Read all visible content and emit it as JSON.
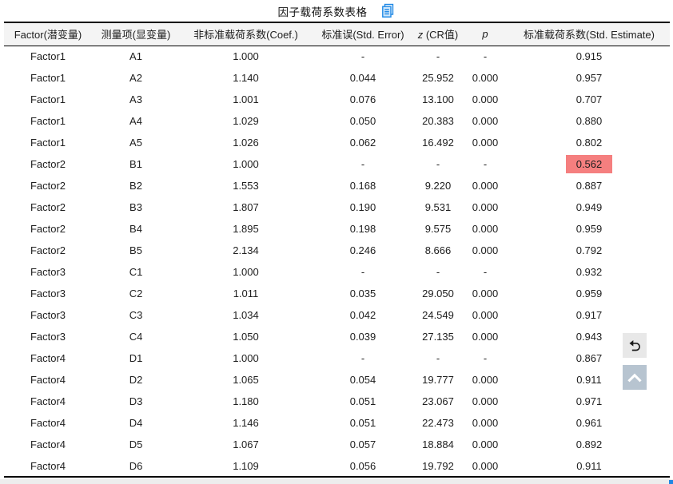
{
  "title": {
    "text": "因子载荷系数表格"
  },
  "icons": {
    "copy_table": "copy-table-icon",
    "undo": "undo-icon",
    "scroll_top": "chevron-up-icon"
  },
  "colors": {
    "highlight_cell": "#f57f7f",
    "icon_blue": "#1e88e5",
    "icon_blue_fill": "#cfe7fb",
    "undo_button_bg": "#e8e8e8",
    "scroll_top_button_bg": "#b7c4d0",
    "header_bg": "#f4f4f4",
    "corner_fragment_blue": "#1e88e5"
  },
  "table": {
    "columns": [
      {
        "key": "factor",
        "label": "Factor(潜变量)"
      },
      {
        "key": "item",
        "label": "测量项(显变量)"
      },
      {
        "key": "coef",
        "label": "非标准载荷系数(Coef.)"
      },
      {
        "key": "stderr",
        "label": "标准误(Std. Error)"
      },
      {
        "key": "z",
        "label_italic": "z",
        "label": " (CR值)"
      },
      {
        "key": "p",
        "label_italic": "p",
        "label": ""
      },
      {
        "key": "est",
        "label": "标准载荷系数(Std. Estimate)"
      }
    ],
    "rows": [
      {
        "factor": "Factor1",
        "item": "A1",
        "coef": "1.000",
        "stderr": "-",
        "z": "-",
        "p": "-",
        "est": "0.915"
      },
      {
        "factor": "Factor1",
        "item": "A2",
        "coef": "1.140",
        "stderr": "0.044",
        "z": "25.952",
        "p": "0.000",
        "est": "0.957"
      },
      {
        "factor": "Factor1",
        "item": "A3",
        "coef": "1.001",
        "stderr": "0.076",
        "z": "13.100",
        "p": "0.000",
        "est": "0.707"
      },
      {
        "factor": "Factor1",
        "item": "A4",
        "coef": "1.029",
        "stderr": "0.050",
        "z": "20.383",
        "p": "0.000",
        "est": "0.880"
      },
      {
        "factor": "Factor1",
        "item": "A5",
        "coef": "1.026",
        "stderr": "0.062",
        "z": "16.492",
        "p": "0.000",
        "est": "0.802"
      },
      {
        "factor": "Factor2",
        "item": "B1",
        "coef": "1.000",
        "stderr": "-",
        "z": "-",
        "p": "-",
        "est": "0.562",
        "est_highlight": true
      },
      {
        "factor": "Factor2",
        "item": "B2",
        "coef": "1.553",
        "stderr": "0.168",
        "z": "9.220",
        "p": "0.000",
        "est": "0.887"
      },
      {
        "factor": "Factor2",
        "item": "B3",
        "coef": "1.807",
        "stderr": "0.190",
        "z": "9.531",
        "p": "0.000",
        "est": "0.949"
      },
      {
        "factor": "Factor2",
        "item": "B4",
        "coef": "1.895",
        "stderr": "0.198",
        "z": "9.575",
        "p": "0.000",
        "est": "0.959"
      },
      {
        "factor": "Factor2",
        "item": "B5",
        "coef": "2.134",
        "stderr": "0.246",
        "z": "8.666",
        "p": "0.000",
        "est": "0.792"
      },
      {
        "factor": "Factor3",
        "item": "C1",
        "coef": "1.000",
        "stderr": "-",
        "z": "-",
        "p": "-",
        "est": "0.932"
      },
      {
        "factor": "Factor3",
        "item": "C2",
        "coef": "1.011",
        "stderr": "0.035",
        "z": "29.050",
        "p": "0.000",
        "est": "0.959"
      },
      {
        "factor": "Factor3",
        "item": "C3",
        "coef": "1.034",
        "stderr": "0.042",
        "z": "24.549",
        "p": "0.000",
        "est": "0.917"
      },
      {
        "factor": "Factor3",
        "item": "C4",
        "coef": "1.050",
        "stderr": "0.039",
        "z": "27.135",
        "p": "0.000",
        "est": "0.943"
      },
      {
        "factor": "Factor4",
        "item": "D1",
        "coef": "1.000",
        "stderr": "-",
        "z": "-",
        "p": "-",
        "est": "0.867"
      },
      {
        "factor": "Factor4",
        "item": "D2",
        "coef": "1.065",
        "stderr": "0.054",
        "z": "19.777",
        "p": "0.000",
        "est": "0.911"
      },
      {
        "factor": "Factor4",
        "item": "D3",
        "coef": "1.180",
        "stderr": "0.051",
        "z": "23.067",
        "p": "0.000",
        "est": "0.971"
      },
      {
        "factor": "Factor4",
        "item": "D4",
        "coef": "1.146",
        "stderr": "0.051",
        "z": "22.473",
        "p": "0.000",
        "est": "0.961"
      },
      {
        "factor": "Factor4",
        "item": "D5",
        "coef": "1.067",
        "stderr": "0.057",
        "z": "18.884",
        "p": "0.000",
        "est": "0.892"
      },
      {
        "factor": "Factor4",
        "item": "D6",
        "coef": "1.109",
        "stderr": "0.056",
        "z": "19.792",
        "p": "0.000",
        "est": "0.911"
      }
    ]
  }
}
